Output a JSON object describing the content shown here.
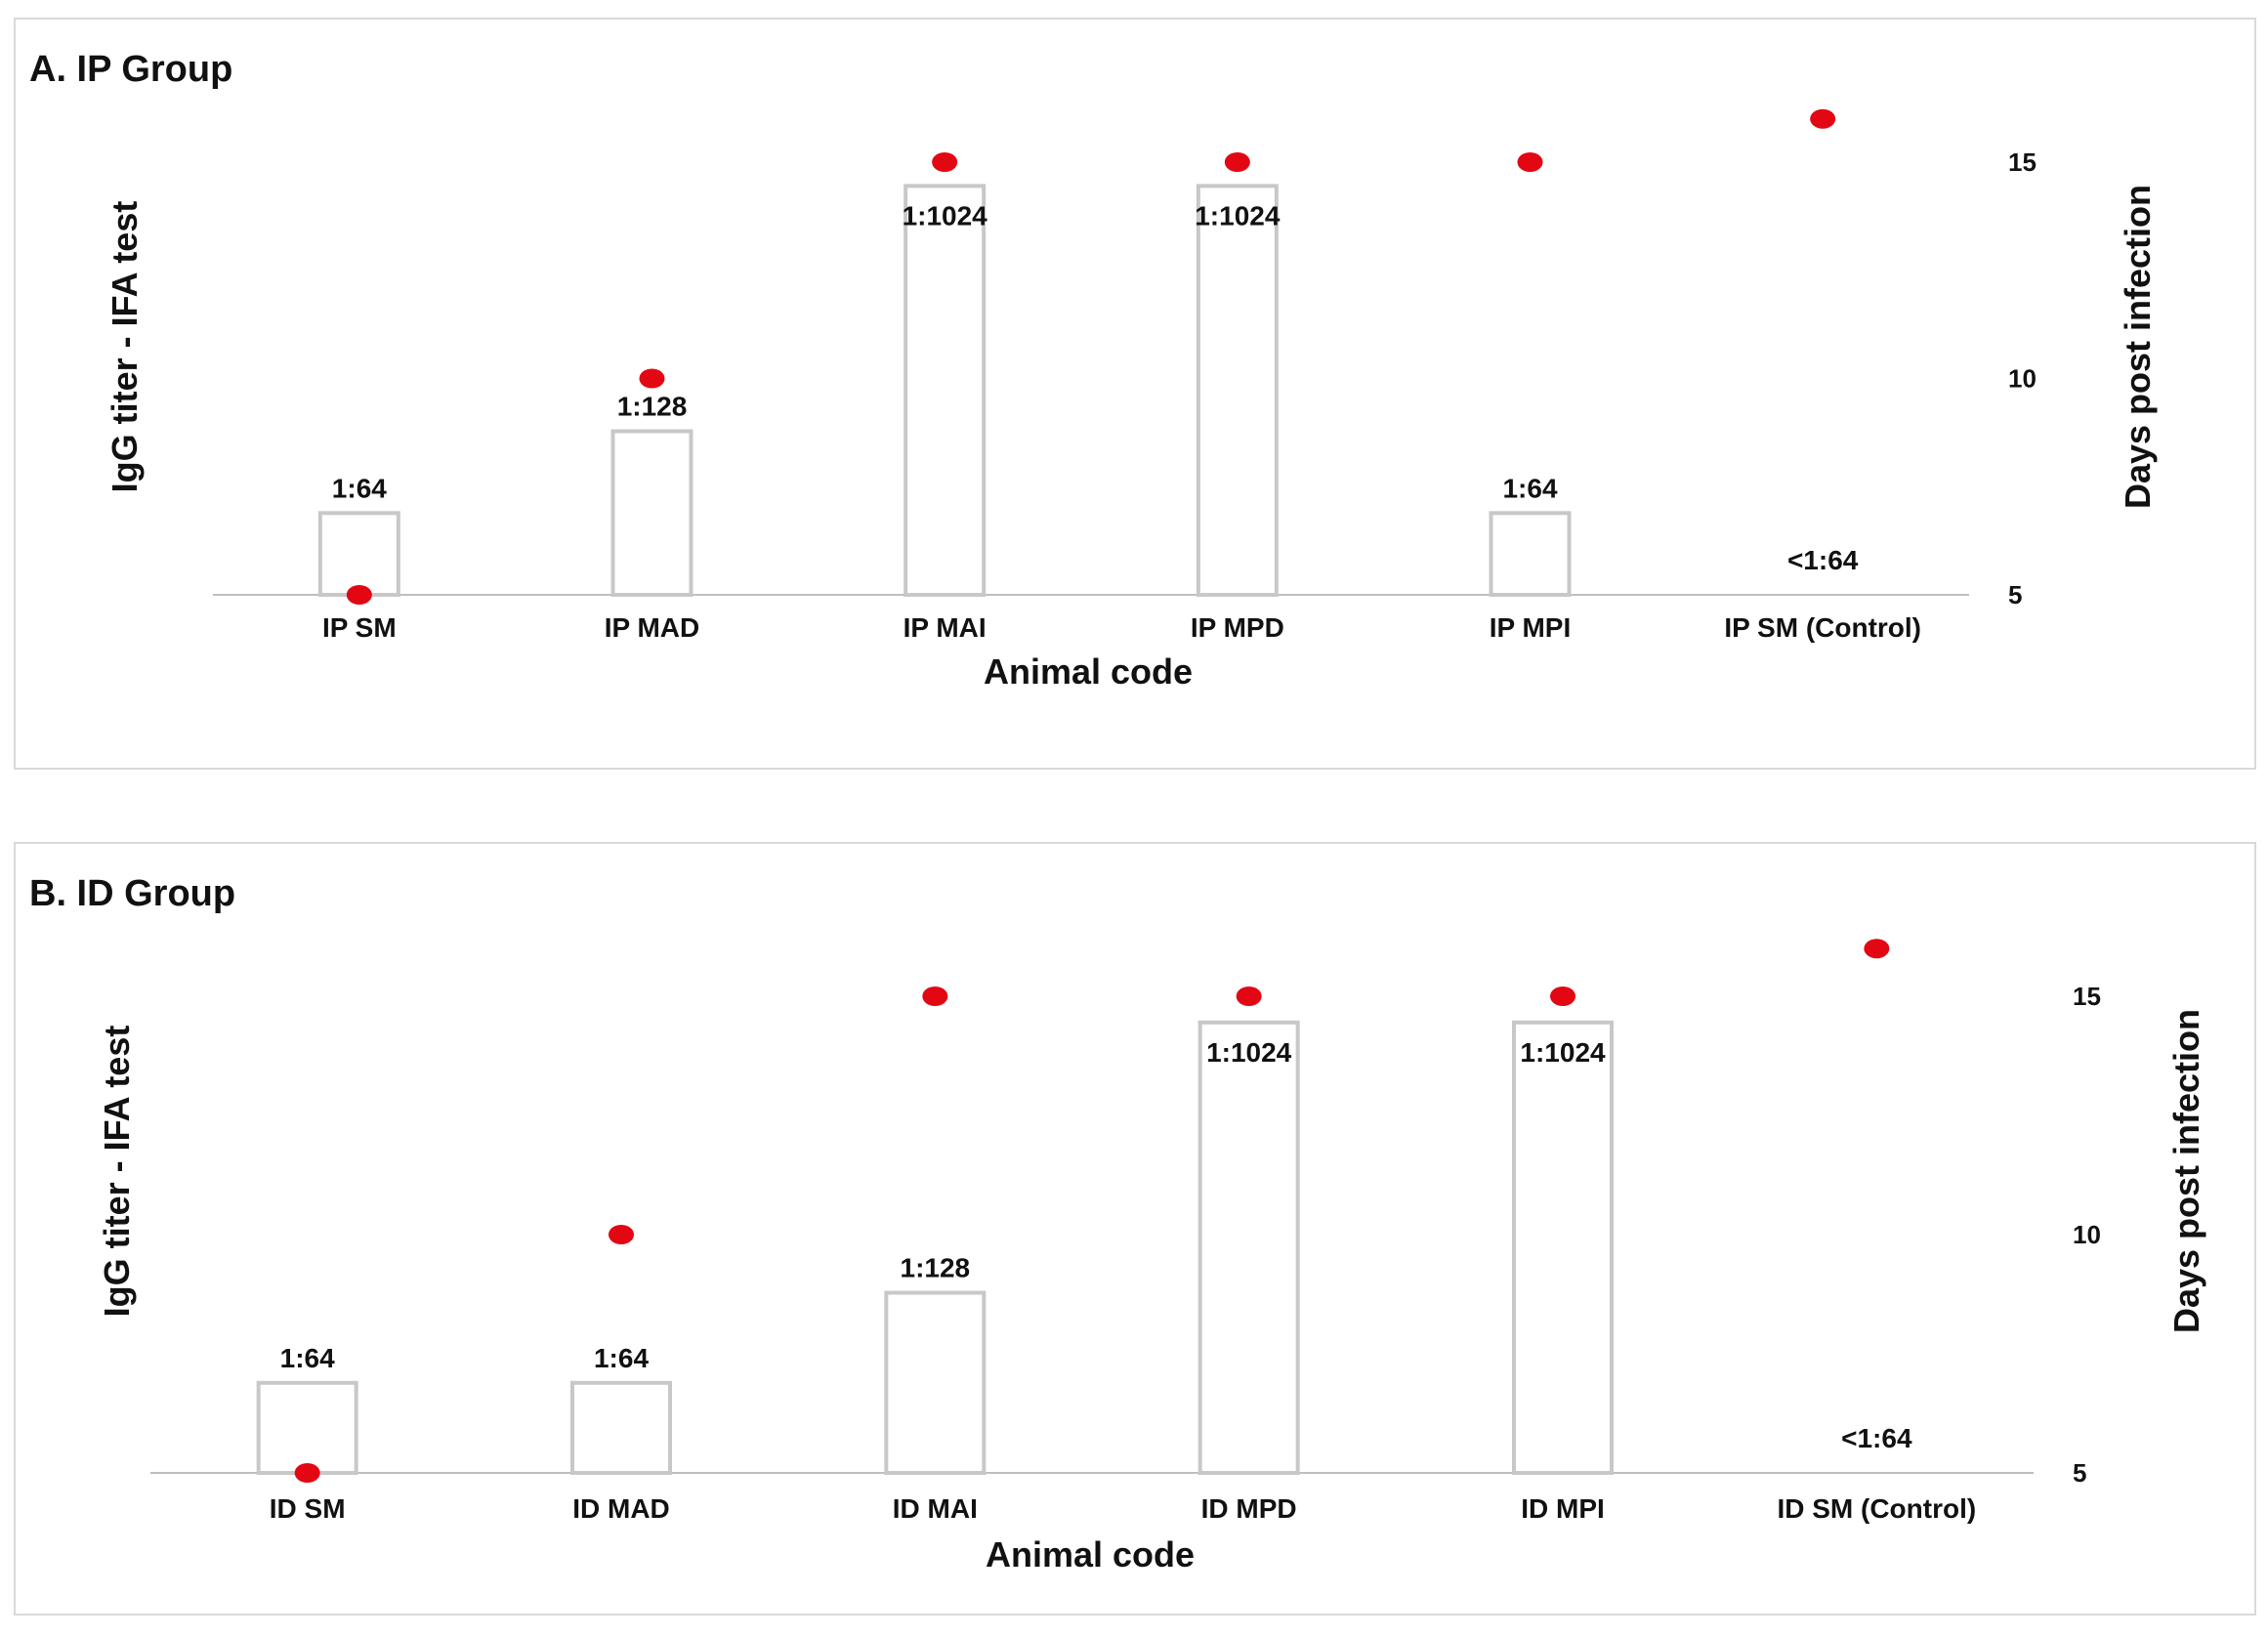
{
  "colors": {
    "bar_edge": "#c8c8c8",
    "bar_fill": "#ffffff",
    "dot": "#e30613",
    "axis": "#bfbfbf"
  },
  "chart_data": [
    {
      "type": "bar",
      "title": "A. IP Group",
      "xlabel": "Animal code",
      "ylabel": "IgG titer - IFA test",
      "y2label": "Days post infection",
      "categories": [
        "IP SM",
        "IP MAD",
        "IP MAI",
        "IP MPD",
        "IP MPI",
        "IP SM (Control)"
      ],
      "series": [
        {
          "type": "bar",
          "axis": "left",
          "values": [
            64,
            128,
            1024,
            1024,
            64,
            0
          ],
          "labels": [
            "1:64",
            "1:128",
            "1:1024",
            "1:1024",
            "1:64",
            "<1:64"
          ]
        },
        {
          "type": "scatter",
          "axis": "right",
          "values": [
            5,
            10,
            15,
            15,
            15,
            16
          ]
        }
      ],
      "y2_ticks": [
        "5",
        "10",
        "15"
      ],
      "y2lim": [
        5,
        15
      ],
      "grid": false,
      "legend": "none"
    },
    {
      "type": "bar",
      "title": "B. ID Group",
      "xlabel": "Animal code",
      "ylabel": "IgG titer - IFA test",
      "y2label": "Days post infection",
      "categories": [
        "ID SM",
        "ID MAD",
        "ID MAI",
        "ID MPD",
        "ID MPI",
        "ID SM (Control)"
      ],
      "series": [
        {
          "type": "bar",
          "axis": "left",
          "values": [
            64,
            64,
            128,
            1024,
            1024,
            0
          ],
          "labels": [
            "1:64",
            "1:64",
            "1:128",
            "1:1024",
            "1:1024",
            "<1:64"
          ]
        },
        {
          "type": "scatter",
          "axis": "right",
          "values": [
            5,
            10,
            15,
            15,
            15,
            16
          ]
        }
      ],
      "y2_ticks": [
        "5",
        "10",
        "15"
      ],
      "y2lim": [
        5,
        15
      ],
      "grid": false,
      "legend": "none"
    }
  ]
}
